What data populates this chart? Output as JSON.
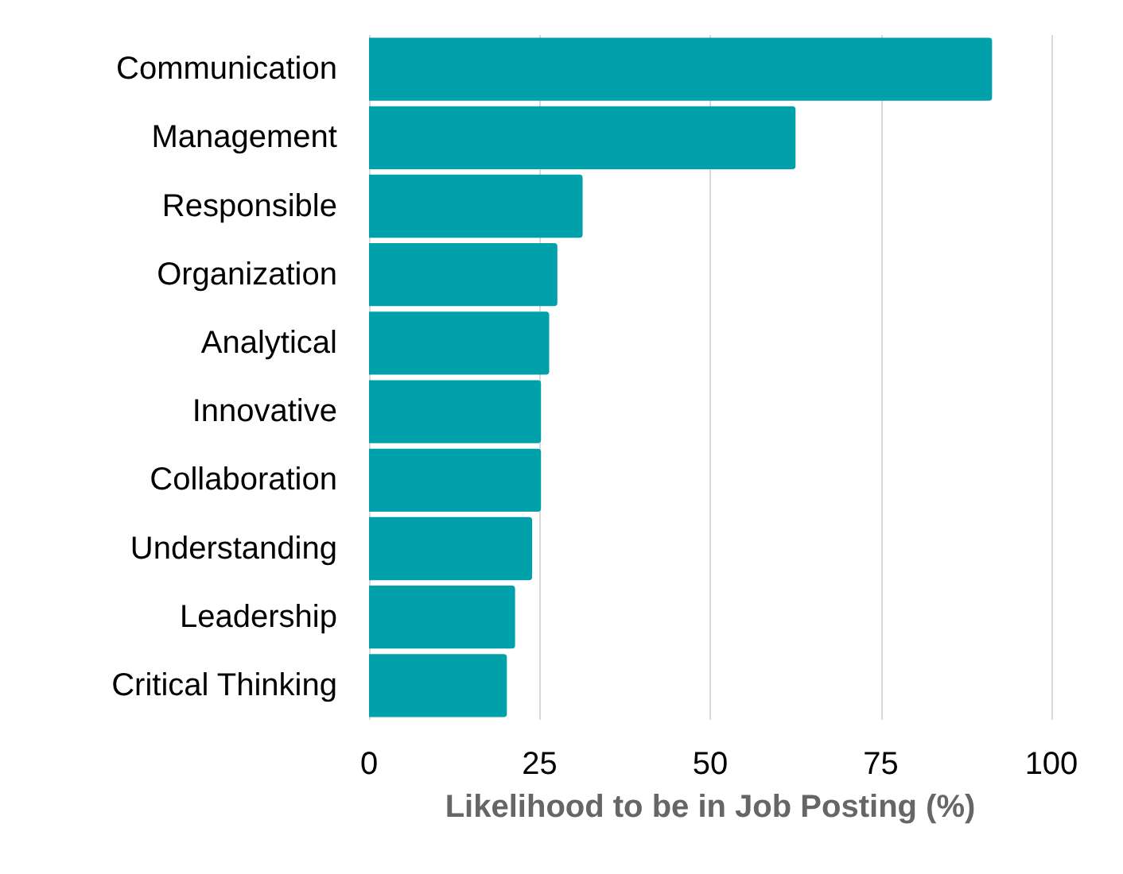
{
  "chart_data": {
    "type": "bar",
    "orientation": "horizontal",
    "xlabel": "Likelihood to be in Job Posting (%)",
    "categories": [
      "Communication",
      "Management",
      "Responsible",
      "Organization",
      "Analytical",
      "Innovative",
      "Collaboration",
      "Understanding",
      "Leadership",
      "Critical Thinking"
    ],
    "values": [
      91.3,
      62.5,
      31.3,
      27.6,
      26.4,
      25.2,
      25.2,
      23.9,
      21.4,
      20.2
    ],
    "color": "#00a1ab",
    "xlim": [
      0,
      100
    ],
    "xticks": [
      0,
      25,
      50,
      75,
      100
    ],
    "grid": "x"
  }
}
